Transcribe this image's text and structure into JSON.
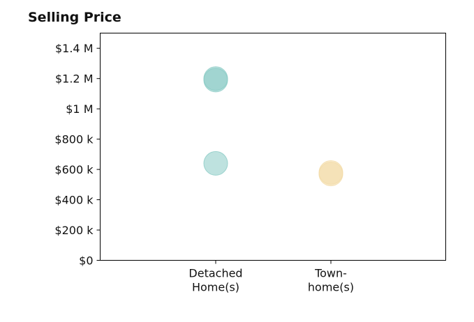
{
  "chart_data": {
    "type": "scatter",
    "title": "Selling Price",
    "xlabel": "",
    "ylabel": "",
    "categories": [
      [
        "Detached",
        "Home(s)"
      ],
      [
        "Town-",
        "home(s)"
      ]
    ],
    "ylim": [
      0,
      1500000
    ],
    "yticks": [
      {
        "value": 0,
        "label": "$0"
      },
      {
        "value": 200000,
        "label": "$200 k"
      },
      {
        "value": 400000,
        "label": "$400 k"
      },
      {
        "value": 600000,
        "label": "$600 k"
      },
      {
        "value": 800000,
        "label": "$800 k"
      },
      {
        "value": 1000000,
        "label": "$1 M"
      },
      {
        "value": 1200000,
        "label": "$1.2 M"
      },
      {
        "value": 1400000,
        "label": "$1.4 M"
      }
    ],
    "grid": false,
    "series": [
      {
        "color": "#88cbc4",
        "points": [
          {
            "category": 0,
            "y": 1190000
          },
          {
            "category": 0,
            "y": 1200000
          },
          {
            "category": 0,
            "y": 640000
          }
        ]
      },
      {
        "color": "#f3dba6",
        "points": [
          {
            "category": 1,
            "y": 570000
          },
          {
            "category": 1,
            "y": 580000
          }
        ]
      }
    ]
  }
}
